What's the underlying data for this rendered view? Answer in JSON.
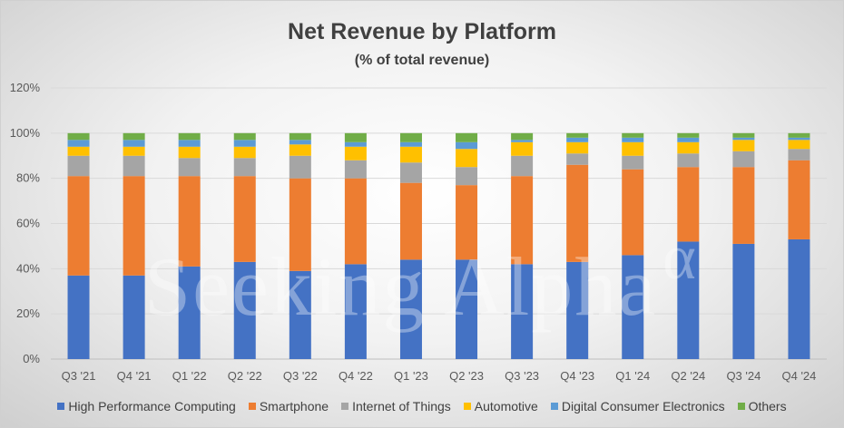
{
  "chart_data": {
    "type": "bar",
    "stacked": true,
    "title": "Net Revenue by Platform",
    "subtitle": "(% of total revenue)",
    "xlabel": "",
    "ylabel": "",
    "ylim": [
      0,
      120
    ],
    "yticks": [
      "0%",
      "20%",
      "40%",
      "60%",
      "80%",
      "100%",
      "120%"
    ],
    "grid": true,
    "legend_position": "bottom",
    "categories": [
      "Q3 '21",
      "Q4 '21",
      "Q1 '22",
      "Q2 '22",
      "Q3 '22",
      "Q4 '22",
      "Q1 '23",
      "Q2 '23",
      "Q3 '23",
      "Q4 '23",
      "Q1 '24",
      "Q2 '24",
      "Q3 '24",
      "Q4 '24"
    ],
    "series": [
      {
        "name": "High Performance Computing",
        "color": "#4472C4",
        "values": [
          37,
          37,
          41,
          43,
          39,
          42,
          44,
          44,
          42,
          43,
          46,
          52,
          51,
          53
        ]
      },
      {
        "name": "Smartphone",
        "color": "#ED7D31",
        "values": [
          44,
          44,
          40,
          38,
          41,
          38,
          34,
          33,
          39,
          43,
          38,
          33,
          34,
          35
        ]
      },
      {
        "name": "Internet of Things",
        "color": "#A5A5A5",
        "values": [
          9,
          9,
          8,
          8,
          10,
          8,
          9,
          8,
          9,
          5,
          6,
          6,
          7,
          5
        ]
      },
      {
        "name": "Automotive",
        "color": "#FFC000",
        "values": [
          4,
          4,
          5,
          5,
          5,
          6,
          7,
          8,
          6,
          5,
          6,
          5,
          5,
          4
        ]
      },
      {
        "name": "Digital Consumer Electronics",
        "color": "#5B9BD5",
        "values": [
          3,
          3,
          3,
          3,
          2,
          2,
          2,
          3,
          1,
          2,
          2,
          2,
          1,
          1
        ]
      },
      {
        "name": "Others",
        "color": "#70AD47",
        "values": [
          3,
          3,
          3,
          3,
          3,
          4,
          4,
          4,
          3,
          2,
          2,
          2,
          2,
          2
        ]
      }
    ]
  },
  "watermark": "Seeking Alpha",
  "watermark_symbol": "α"
}
